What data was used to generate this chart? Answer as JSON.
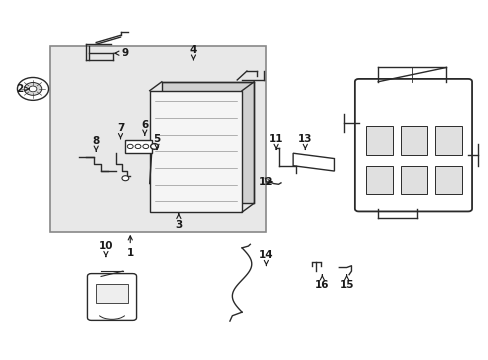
{
  "bg_color": "#ffffff",
  "line_color": "#2a2a2a",
  "fill_light": "#e8e8e8",
  "fill_white": "#ffffff",
  "font_size": 7.5,
  "font_bold": true,
  "label_color": "#1a1a1a",
  "arrow_color": "#1a1a1a",
  "labels": {
    "1": [
      0.265,
      0.355,
      0.265,
      0.295
    ],
    "2": [
      0.065,
      0.755,
      0.038,
      0.755
    ],
    "3": [
      0.365,
      0.415,
      0.365,
      0.375
    ],
    "4": [
      0.395,
      0.835,
      0.395,
      0.865
    ],
    "5": [
      0.32,
      0.585,
      0.32,
      0.615
    ],
    "6": [
      0.295,
      0.625,
      0.295,
      0.655
    ],
    "7": [
      0.245,
      0.615,
      0.245,
      0.645
    ],
    "8": [
      0.195,
      0.58,
      0.195,
      0.61
    ],
    "9": [
      0.225,
      0.855,
      0.255,
      0.855
    ],
    "10": [
      0.215,
      0.285,
      0.215,
      0.315
    ],
    "11": [
      0.565,
      0.585,
      0.565,
      0.615
    ],
    "12": [
      0.565,
      0.495,
      0.545,
      0.495
    ],
    "13": [
      0.625,
      0.585,
      0.625,
      0.615
    ],
    "14": [
      0.545,
      0.26,
      0.545,
      0.29
    ],
    "15": [
      0.71,
      0.235,
      0.71,
      0.205
    ],
    "16": [
      0.66,
      0.235,
      0.66,
      0.205
    ]
  }
}
